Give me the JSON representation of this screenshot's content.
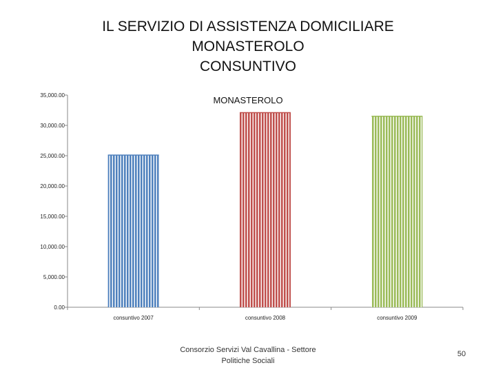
{
  "slide": {
    "title_lines": [
      "IL SERVIZIO DI ASSISTENZA DOMICILIARE",
      "MONASTEROLO",
      "CONSUNTIVO"
    ],
    "footer": "Consorzio Servizi Val Cavallina - Settore Politiche Sociali",
    "page_number": "50"
  },
  "chart_data": {
    "type": "bar",
    "title": "MONASTEROLO",
    "categories": [
      "consuntivo 2007",
      "consuntivo 2008",
      "consuntivo 2009"
    ],
    "values": [
      25100,
      32100,
      31500
    ],
    "colors": [
      "#4f81bd",
      "#c0504d",
      "#9bbb59"
    ],
    "ylim": [
      0,
      35000
    ],
    "yticks": [
      0,
      5000,
      10000,
      15000,
      20000,
      25000,
      30000,
      35000
    ],
    "ytick_labels": [
      "0.00",
      "5,000.00",
      "10,000.00",
      "15,000.00",
      "20,000.00",
      "25,000.00",
      "30,000.00",
      "35,000.00"
    ],
    "grid": false,
    "legend": "none",
    "xlabel": "",
    "ylabel": ""
  }
}
